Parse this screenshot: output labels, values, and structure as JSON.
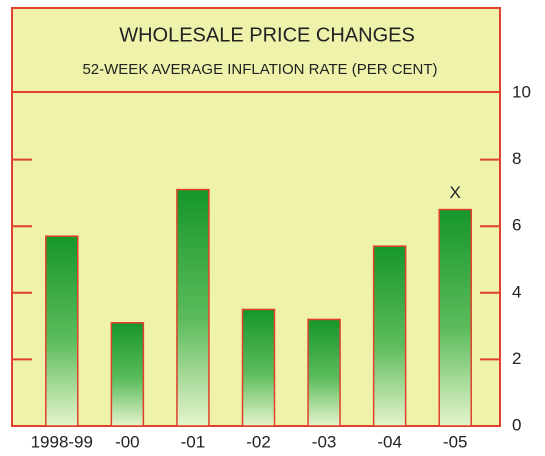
{
  "chart_data": {
    "type": "bar",
    "title": "WHOLESALE PRICE CHANGES",
    "subtitle": "52-WEEK AVERAGE INFLATION RATE (PER CENT)",
    "categories": [
      "1998-99",
      "-00",
      "-01",
      "-02",
      "-03",
      "-04",
      "-05"
    ],
    "values": [
      5.7,
      3.1,
      7.1,
      3.5,
      3.2,
      5.4,
      6.5
    ],
    "color": "#1c9a2c",
    "ylim": [
      0,
      10
    ],
    "yticks": [
      0,
      2,
      4,
      6,
      8,
      10
    ],
    "annotations": [
      {
        "text": "X",
        "x": "-05"
      }
    ]
  }
}
